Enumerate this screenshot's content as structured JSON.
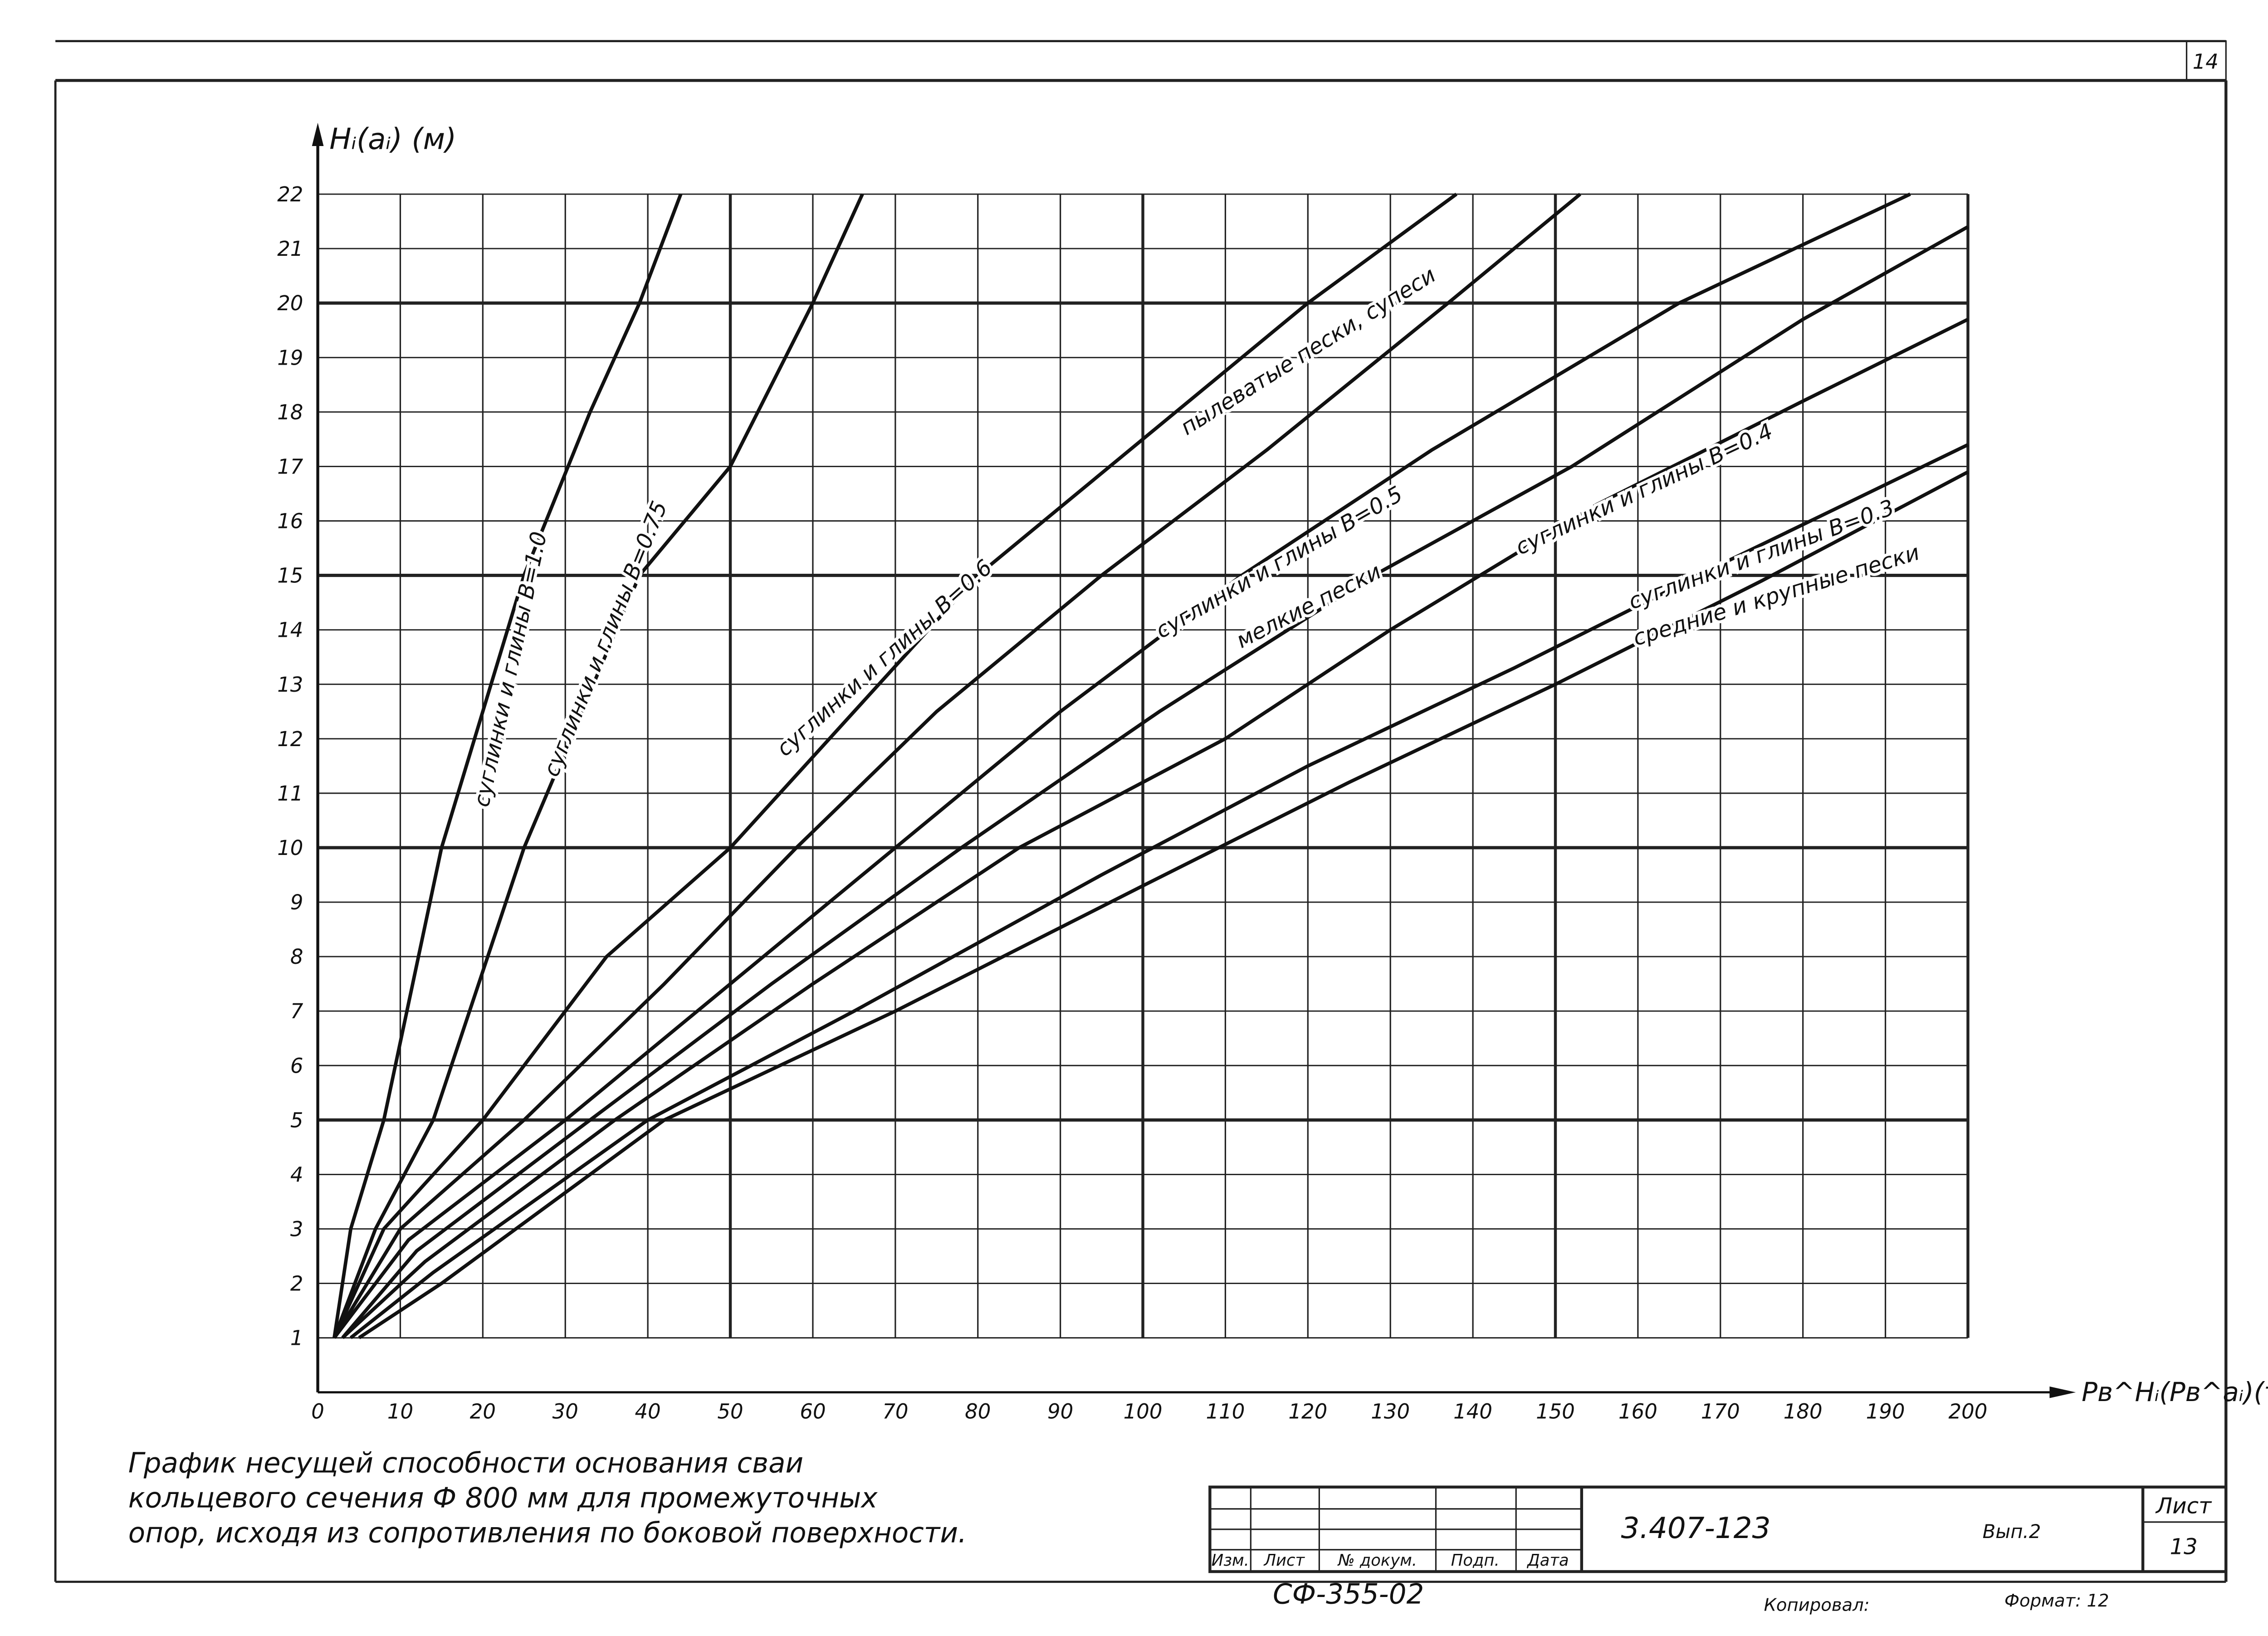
{
  "page_number": "14",
  "chart_data": {
    "type": "line",
    "y_label": "Hᵢ(aᵢ) (м)",
    "x_label": "Pв^Hᵢ(Pв^aᵢ)(т)",
    "xlim": [
      0,
      200
    ],
    "ylim": [
      0,
      22
    ],
    "xticks": [
      0,
      10,
      20,
      30,
      40,
      50,
      60,
      70,
      80,
      90,
      100,
      110,
      120,
      130,
      140,
      150,
      160,
      170,
      180,
      190,
      200
    ],
    "yticks": [
      1,
      2,
      3,
      4,
      5,
      6,
      7,
      8,
      9,
      10,
      11,
      12,
      13,
      14,
      15,
      16,
      17,
      18,
      19,
      20,
      21,
      22
    ],
    "grid": true,
    "color": "#111111",
    "series": [
      {
        "x": [
          2,
          4,
          8,
          15,
          25,
          33,
          39,
          44
        ],
        "values": [
          1,
          3,
          5,
          10,
          15,
          18,
          20,
          22
        ]
      },
      {
        "x": [
          2,
          7,
          14,
          25,
          39,
          50,
          60,
          66
        ],
        "values": [
          1,
          3,
          5,
          10,
          15,
          17,
          20,
          22
        ]
      },
      {
        "x": [
          2,
          8,
          20,
          35,
          50,
          65,
          80,
          100,
          120,
          138
        ],
        "values": [
          1,
          3,
          5,
          8,
          10,
          12.5,
          15,
          17.5,
          20,
          22
        ]
      },
      {
        "x": [
          2,
          10,
          25,
          42,
          58,
          75,
          95,
          115,
          137,
          153
        ],
        "values": [
          1,
          3,
          5,
          7.5,
          10,
          12.5,
          15,
          17.3,
          20,
          22
        ]
      },
      {
        "x": [
          2,
          11,
          30,
          50,
          70,
          90,
          112,
          135,
          165,
          193
        ],
        "values": [
          1,
          2.8,
          5,
          7.5,
          10,
          12.5,
          15,
          17.3,
          20,
          22
        ]
      },
      {
        "x": [
          3,
          12,
          33,
          55,
          78,
          102,
          128,
          152,
          180,
          200
        ],
        "values": [
          1,
          2.6,
          5,
          7.5,
          10,
          12.5,
          15,
          17,
          19.7,
          21.4
        ]
      },
      {
        "x": [
          3,
          13,
          36,
          60,
          85,
          110,
          130,
          155,
          180,
          200
        ],
        "values": [
          1,
          2.4,
          5,
          7.5,
          10,
          12,
          14,
          16.3,
          18.2,
          19.7
        ]
      },
      {
        "x": [
          4,
          14,
          40,
          65,
          95,
          120,
          145,
          170,
          200
        ],
        "values": [
          1,
          2.2,
          5,
          7,
          9.5,
          11.5,
          13.3,
          15.2,
          17.4
        ]
      },
      {
        "x": [
          5,
          15,
          42,
          70,
          100,
          125,
          150,
          175,
          200
        ],
        "values": [
          1,
          2,
          5,
          7,
          9.3,
          11.2,
          13,
          14.9,
          16.9
        ]
      }
    ],
    "annotations": [
      "суглинки и глины B=1.0",
      "суглинки и глины B=0.75",
      "суглинки и глины B=0.6",
      "пылеватые пески, супеси",
      "суглинки и глины B=0.5",
      "мелкие пески",
      "суглинки и глины B=0.4",
      "суглинки и глины B=0.3",
      "средние и крупные пески"
    ]
  },
  "caption": [
    "График несущей способности основания сваи",
    "кольцевого сечения Ф 800 мм для промежуточных",
    "опор, исходя из сопротивления по боковой поверхности."
  ],
  "stamp": {
    "columns": [
      "Изм.",
      "Лист",
      "№ докум.",
      "Подп.",
      "Дата"
    ],
    "code": "3.407-123",
    "issue": "Вып.2",
    "sheet_label": "Лист",
    "sheet": "13",
    "number": "СФ-355-02",
    "copied": "Копировал:",
    "format": "Формат: 12"
  }
}
